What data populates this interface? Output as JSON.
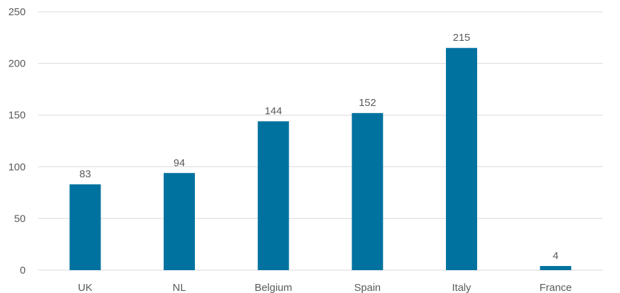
{
  "chart_data": {
    "type": "bar",
    "categories": [
      "UK",
      "NL",
      "Belgium",
      "Spain",
      "Italy",
      "France"
    ],
    "values": [
      83,
      94,
      144,
      152,
      215,
      4
    ],
    "data_labels": [
      "83",
      "94",
      "144",
      "152",
      "215",
      "4"
    ],
    "title": "",
    "xlabel": "",
    "ylabel": "",
    "ylim": [
      0,
      250
    ],
    "yticks": [
      "0",
      "50",
      "100",
      "150",
      "200",
      "250"
    ],
    "grid": true,
    "legend": "none",
    "bar_color": "#00729F",
    "grid_color": "#D9D9D9",
    "text_color": "#595959"
  }
}
